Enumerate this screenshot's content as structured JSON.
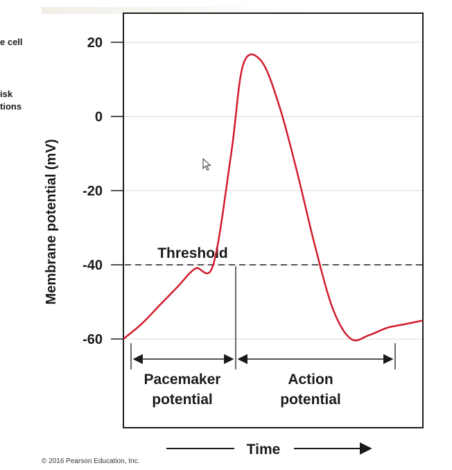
{
  "side_labels": {
    "line1": "e cell",
    "line2": "isk",
    "line3": "tions"
  },
  "copyright": "© 2016 Pearson Education, Inc.",
  "colors": {
    "curve": "#d11a2a",
    "text": "#1a1a1a",
    "grid": "#d9d9d9"
  },
  "chart_data": {
    "type": "line",
    "title": "",
    "xlabel": "Time",
    "ylabel": "Membrane potential (mV)",
    "ylim": [
      -80,
      28
    ],
    "y_ticks": [
      "20",
      "0",
      "-20",
      "-40",
      "-60"
    ],
    "y_tick_values": [
      20,
      0,
      -20,
      -40,
      -60
    ],
    "grid": true,
    "x_units": "arbitrary time",
    "series": [
      {
        "values_x": [
          0,
          6,
          12,
          18,
          24,
          30,
          36,
          40,
          46,
          52,
          58,
          64,
          70,
          76,
          82,
          88,
          94,
          100
        ],
        "values_y": [
          -60,
          -56,
          -51,
          -46,
          -41,
          -40,
          -10,
          14,
          15,
          3,
          -15,
          -35,
          -52,
          -60,
          -59,
          -57,
          -56,
          -55
        ]
      }
    ],
    "threshold": {
      "value": -40,
      "label": "Threshold"
    },
    "annotations": {
      "pacemaker_line1": "Pacemaker",
      "pacemaker_line2": "potential",
      "action_line1": "Action",
      "action_line2": "potential"
    }
  }
}
